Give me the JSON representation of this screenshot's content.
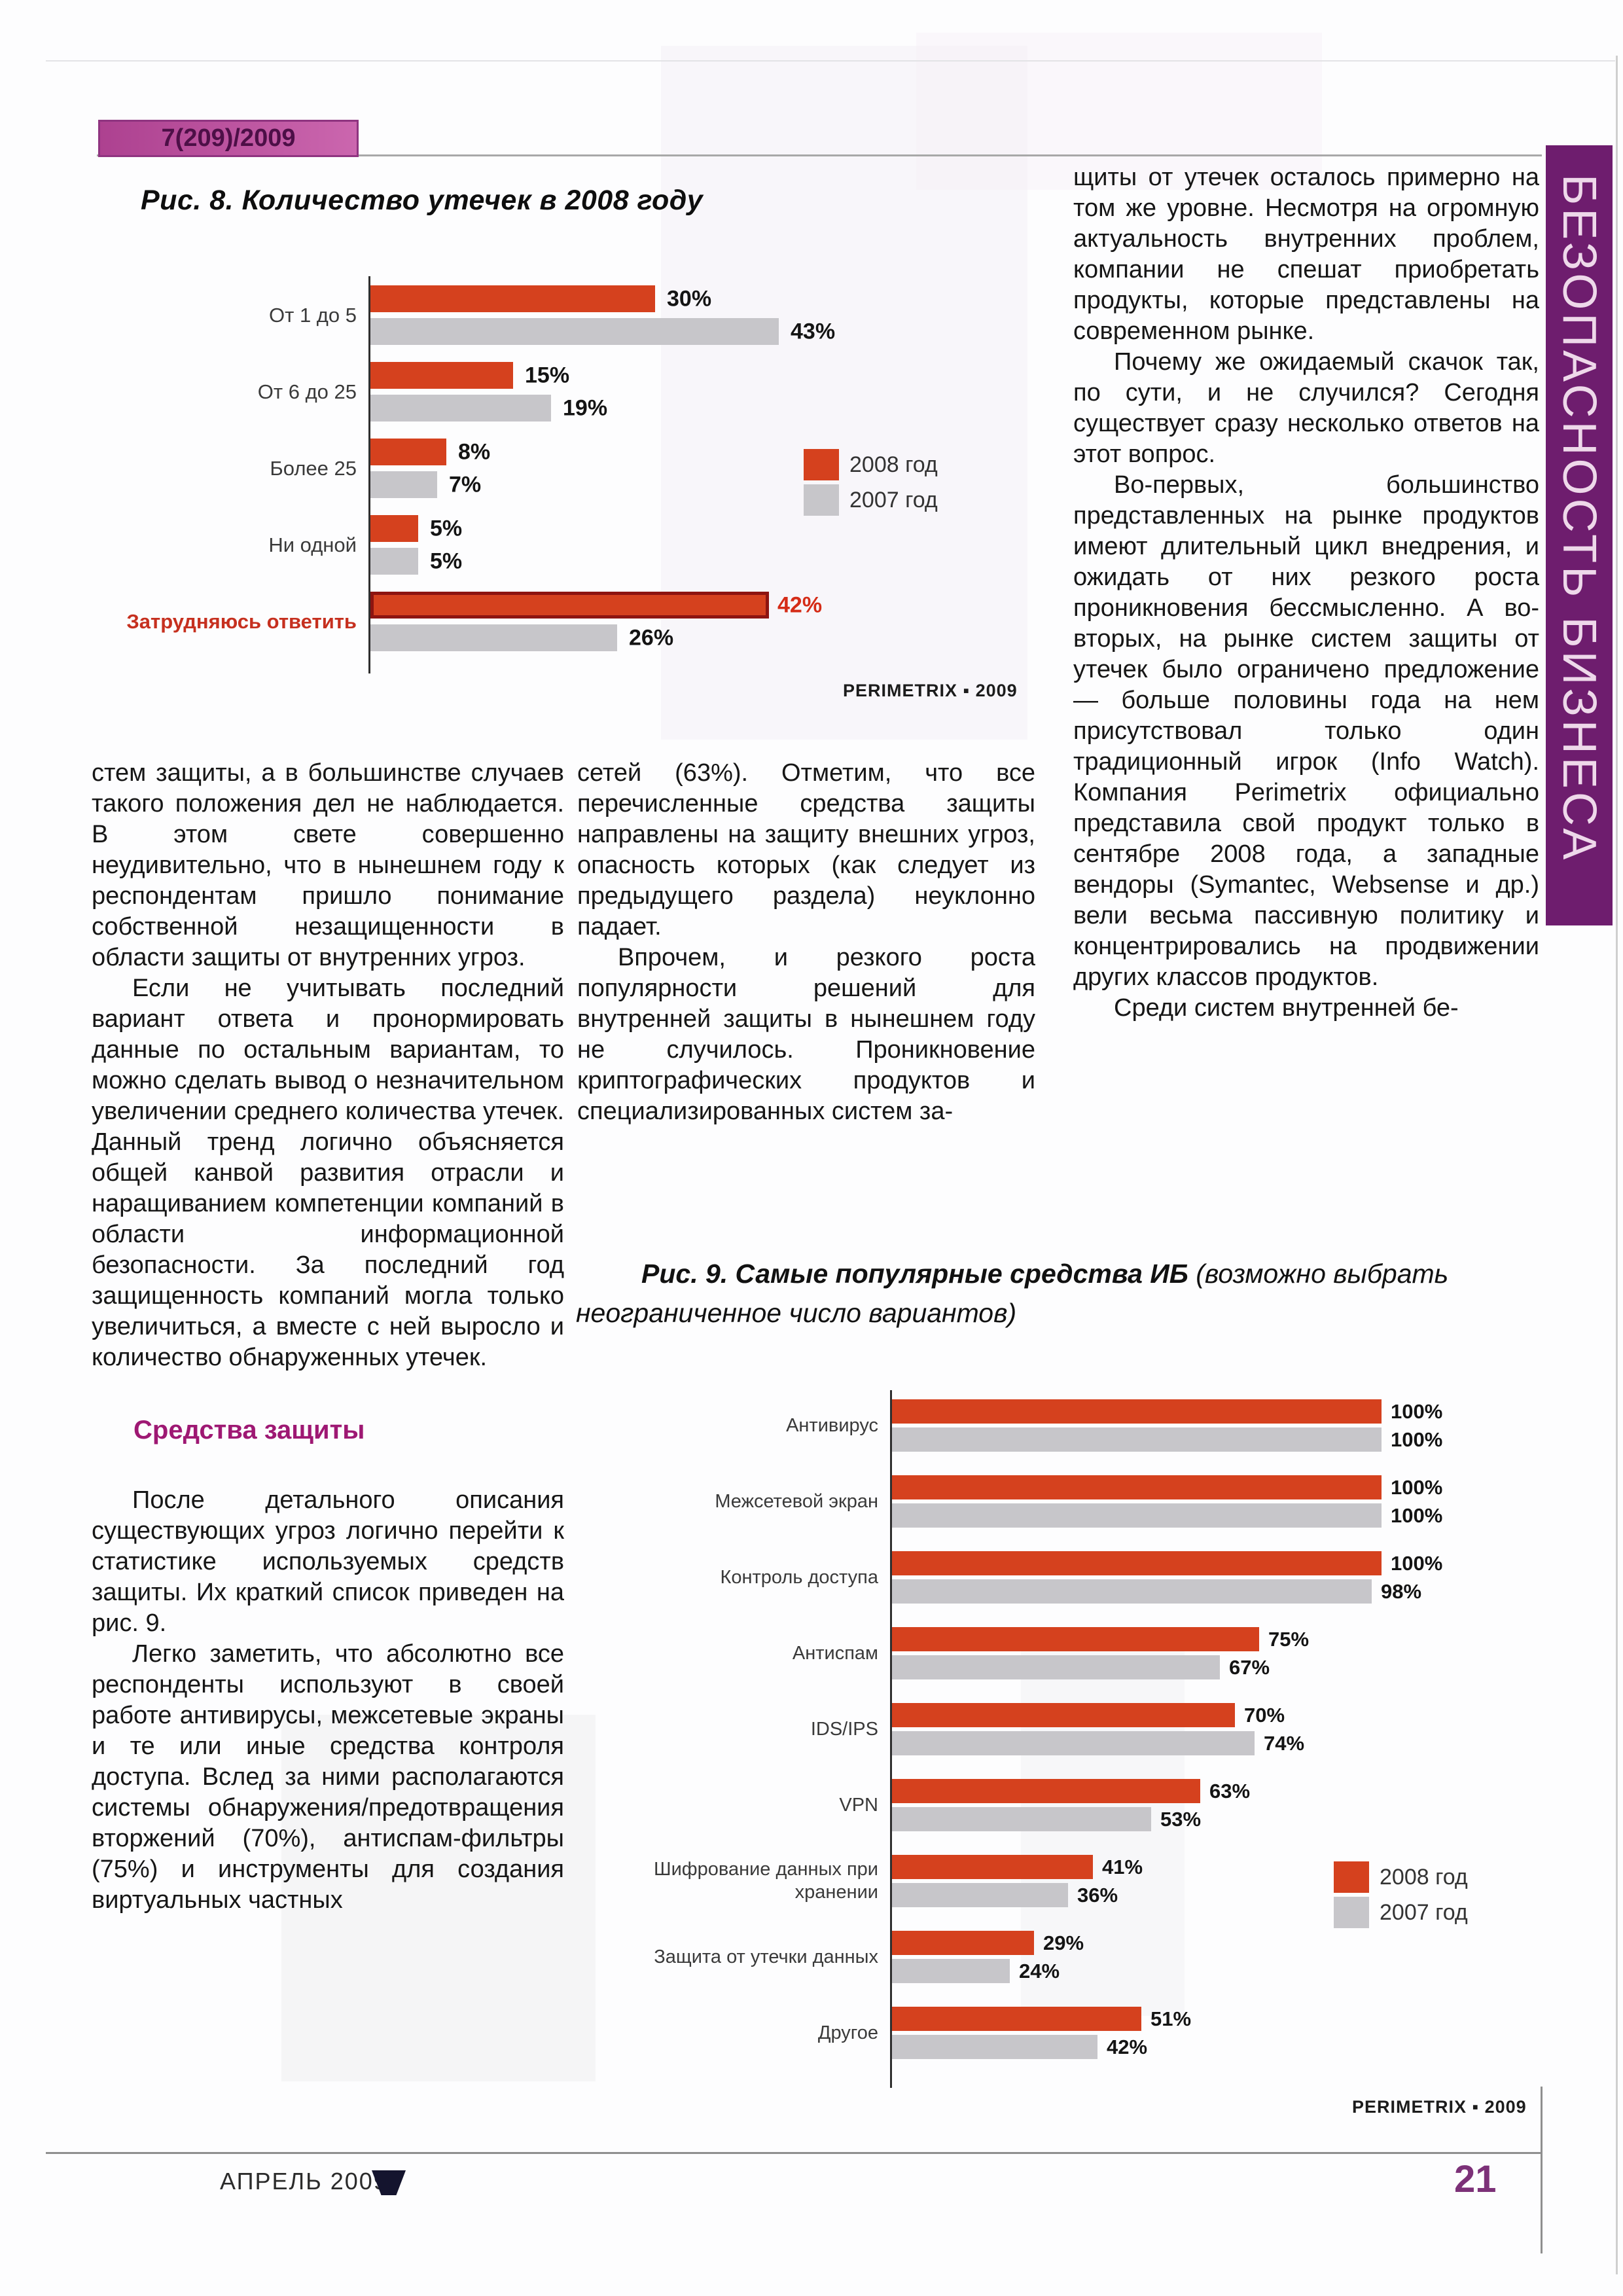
{
  "page": {
    "issue": "7(209)/2009",
    "sidebar": "БЕЗОПАСНОСТЬ БИЗНЕСА",
    "footer_left": "АПРЕЛЬ 2009",
    "page_number": "21"
  },
  "colors": {
    "accent_red": "#d5411e",
    "bar_gray": "#c7c6ca",
    "heading_magenta": "#9e1873",
    "sidebar_purple": "#6e1d6e",
    "badge_pink": "#bf56a2",
    "highlight_dark_red": "#8d1410"
  },
  "fig8": {
    "title": "Рис. 8. Количество утечек в 2008 году",
    "source": "PERIMETRIX ▪ 2009",
    "legend": {
      "s2008": "2008 год",
      "s2007": "2007 год"
    }
  },
  "fig9": {
    "title_main": "Рис. 9. Самые популярные средства ИБ",
    "title_note": " (возможно выбрать неограниченное число вариантов)",
    "source": "PERIMETRIX ▪ 2009",
    "legend": {
      "s2008": "2008 год",
      "s2007": "2007 год"
    }
  },
  "chart_data": [
    {
      "type": "bar",
      "orientation": "horizontal",
      "title": "Рис. 8. Количество утечек в 2008 году",
      "unit": "%",
      "categories": [
        "От 1 до 5",
        "От 6 до 25",
        "Более 25",
        "Ни одной",
        "Затрудняюсь ответить"
      ],
      "series": [
        {
          "name": "2008 год",
          "values": [
            30,
            15,
            8,
            5,
            42
          ]
        },
        {
          "name": "2007 год",
          "values": [
            43,
            19,
            7,
            5,
            26
          ]
        }
      ],
      "highlight_category": "Затрудняюсь ответить",
      "xlim": [
        0,
        43
      ],
      "grid": false,
      "legend_position": "right",
      "source": "PERIMETRIX ▪ 2009"
    },
    {
      "type": "bar",
      "orientation": "horizontal",
      "title": "Рис. 9. Самые популярные средства ИБ (возможно выбрать неограниченное число вариантов)",
      "unit": "%",
      "categories": [
        "Антивирус",
        "Межсетевой экран",
        "Контроль доступа",
        "Антиспам",
        "IDS/IPS",
        "VPN",
        "Шифрование данных при хранении",
        "Защита от утечки данных",
        "Другое"
      ],
      "series": [
        {
          "name": "2008 год",
          "values": [
            100,
            100,
            100,
            75,
            70,
            63,
            41,
            29,
            51
          ]
        },
        {
          "name": "2007 год",
          "values": [
            100,
            100,
            98,
            67,
            74,
            53,
            36,
            24,
            42
          ]
        }
      ],
      "xlim": [
        0,
        100
      ],
      "grid": false,
      "legend_position": "right",
      "source": "PERIMETRIX ▪ 2009"
    }
  ],
  "columns": {
    "left": {
      "p1": "стем защиты, а в большинстве случаев такого положения дел не наблюдается. В этом свете совершенно неудивительно, что в нынешнем году к респондентам пришло понимание собственной незащищенности в области защиты от внутренних угроз.",
      "p2": "Если не учитывать последний вариант ответа и пронормировать данные по остальным вариантам, то можно сделать вывод о незначительном увеличении среднего количества утечек. Данный тренд логично объясняется общей канвой развития отрасли и наращиванием компетенции компаний в области информационной безопасности. За последний год защищенность компаний могла только увеличиться, а вместе с ней выросло и количество обнаруженных утечек.",
      "heading": "Средства защиты",
      "p3": "После детального описания существующих угроз логично перейти к статистике используемых средств защиты. Их краткий список приведен на рис. 9.",
      "p4": "Легко заметить, что абсолютно все респонденты используют в своей работе антивирусы, межсетевые экраны и те или иные средства контроля доступа. Вслед за ними располагаются системы обнаружения/предотвращения вторжений (70%), антиспам-фильтры (75%) и инструменты для создания виртуальных частных"
    },
    "middle": {
      "p1": "сетей (63%). Отметим, что все перечисленные средства защиты направлены на защиту внешних угроз, опасность которых (как следует из предыдущего раздела) неуклонно падает.",
      "p2": "Впрочем, и резкого роста популярности решений для внутренней защиты в нынешнем году не случилось. Проникновение криптографических продуктов и специализированных систем за-"
    },
    "right": {
      "p1": "щиты от утечек осталось примерно на том же уровне. Несмотря на огромную актуальность внутренних проблем, компании не спешат приобретать продукты, которые представлены на современном рынке.",
      "p2": "Почему же ожидаемый скачок так, по сути, и не случился? Сегодня существует сразу несколько ответов на этот вопрос.",
      "p3": "Во-первых, большинство представленных на рынке продуктов имеют длительный цикл внедрения, и ожидать от них резкого роста проникновения бессмысленно. А во-вторых, на рынке систем защиты от утечек было ограничено предложение — больше половины года на нем присутствовал только один традиционный игрок (Info Watch). Компания Perimetrix официально представила свой продукт только в сентябре 2008 года, а западные вендоры (Symantec, Websense и др.) вели весьма пассивную политику и концентрировались на продвижении других классов продуктов.",
      "p4": "Среди систем внутренней бе-"
    }
  }
}
